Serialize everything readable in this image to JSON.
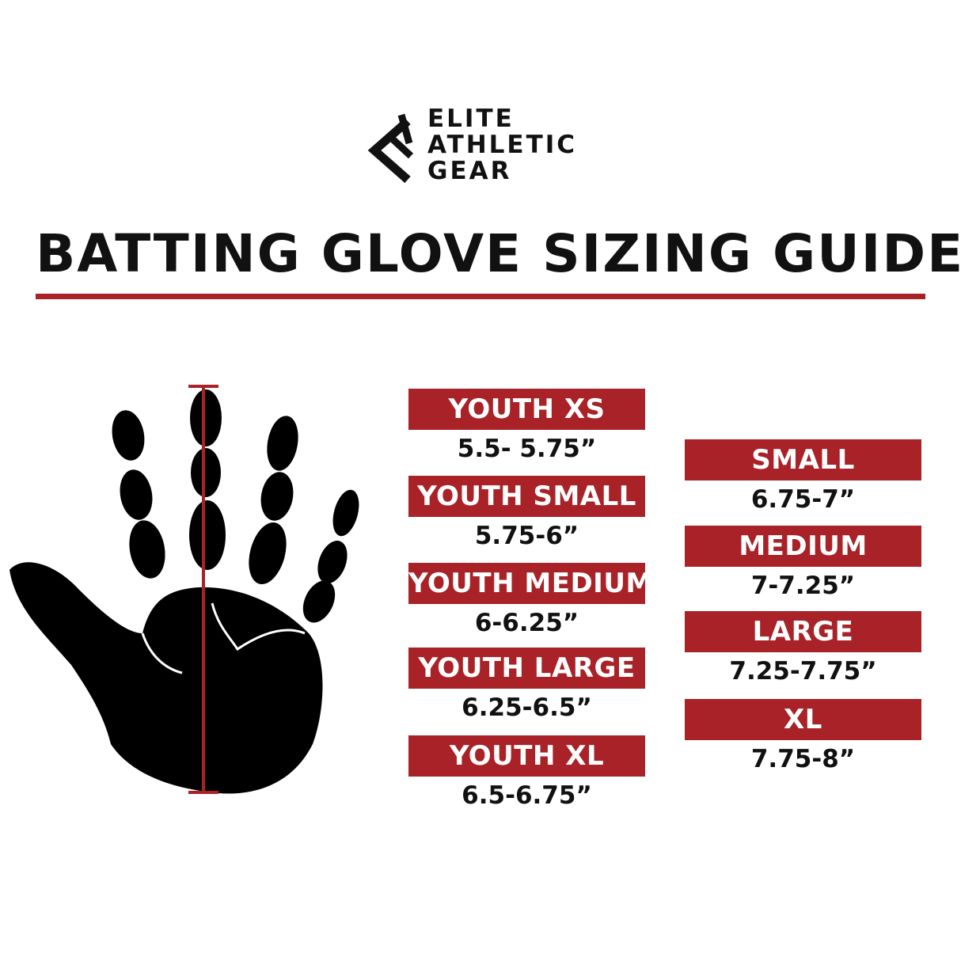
{
  "brand": {
    "lines": [
      "ELITE",
      "ATHLETIC",
      "GEAR"
    ]
  },
  "title": "BATTING GLOVE SIZING GUIDE",
  "colors": {
    "accent": "#a82227",
    "text": "#111111"
  },
  "youth_sizes": [
    {
      "label": "YOUTH XS",
      "range": "5.5- 5.75”"
    },
    {
      "label": "YOUTH SMALL",
      "range": "5.75-6”"
    },
    {
      "label": "YOUTH MEDIUM",
      "range": "6-6.25”"
    },
    {
      "label": "YOUTH LARGE",
      "range": "6.25-6.5”"
    },
    {
      "label": "YOUTH XL",
      "range": "6.5-6.75”"
    }
  ],
  "adult_sizes": [
    {
      "label": "SMALL",
      "range": "6.75-7”"
    },
    {
      "label": "MEDIUM",
      "range": "7-7.25”"
    },
    {
      "label": "LARGE",
      "range": "7.25-7.75”"
    },
    {
      "label": "XL",
      "range": "7.75-8”"
    }
  ],
  "hand_icon": "hand-with-measurement-line"
}
